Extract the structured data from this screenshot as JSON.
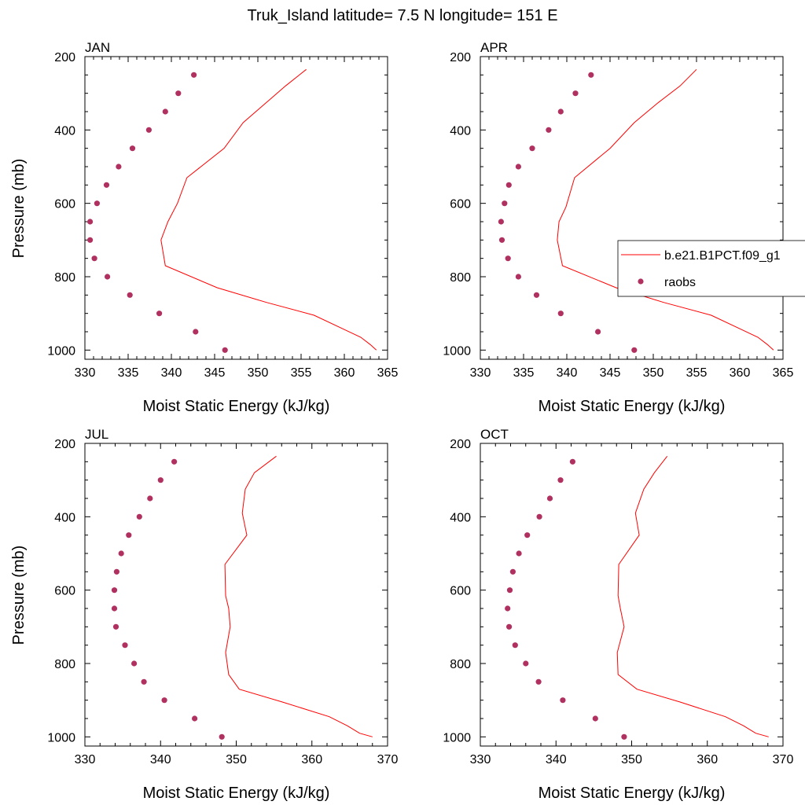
{
  "title": "Truk_Island  latitude= 7.5 N longitude= 151 E",
  "colors": {
    "model": "#ff0000",
    "obs": "#b03060",
    "axis": "#000000"
  },
  "legend": {
    "model_label": "b.e21.B1PCT.f09_g1",
    "obs_label": "raobs"
  },
  "chart_data": [
    {
      "type": "scatter",
      "title": "JAN",
      "xlabel": "Moist Static Energy (kJ/kg)",
      "ylabel": "Pressure (mb)",
      "xlim": [
        330,
        365
      ],
      "ylim": [
        1025,
        200
      ],
      "y_scale": "linear, inverted",
      "xticks": [
        330,
        335,
        340,
        345,
        350,
        355,
        360,
        365
      ],
      "yticks": [
        200,
        400,
        600,
        800,
        1000
      ],
      "series": [
        {
          "name": "b.e21.B1PCT.f09_g1",
          "mark": "line",
          "x": [
            363.7,
            363.0,
            361.9,
            360.1,
            356.5,
            351.0,
            345.3,
            339.3,
            338.8,
            339.6,
            340.7,
            341.8,
            346.1,
            348.3,
            351.0,
            353.2,
            355.6
          ],
          "y": [
            1000,
            985,
            965,
            945,
            905,
            870,
            830,
            770,
            700,
            650,
            600,
            530,
            450,
            380,
            325,
            280,
            235
          ]
        },
        {
          "name": "raobs",
          "mark": "marker",
          "x": [
            346.2,
            342.8,
            338.6,
            335.2,
            332.6,
            331.1,
            330.6,
            330.6,
            331.4,
            332.5,
            333.9,
            335.5,
            337.4,
            339.3,
            340.8,
            342.6
          ],
          "y": [
            1000,
            950,
            900,
            850,
            800,
            750,
            700,
            650,
            600,
            550,
            500,
            450,
            400,
            350,
            300,
            250
          ]
        }
      ]
    },
    {
      "type": "scatter",
      "title": "APR",
      "xlabel": "Moist Static Energy (kJ/kg)",
      "ylabel": "",
      "xlim": [
        330,
        365
      ],
      "ylim": [
        1025,
        200
      ],
      "y_scale": "linear, inverted",
      "xticks": [
        330,
        335,
        340,
        345,
        350,
        355,
        360,
        365
      ],
      "yticks": [
        200,
        400,
        600,
        800,
        1000
      ],
      "legend_position": "right",
      "series": [
        {
          "name": "b.e21.B1PCT.f09_g1",
          "mark": "line",
          "x": [
            363.9,
            363.2,
            362.1,
            360.3,
            356.7,
            351.2,
            345.7,
            339.5,
            338.9,
            339.1,
            339.9,
            340.9,
            345.0,
            347.8,
            350.6,
            353.1,
            355.0
          ],
          "y": [
            1000,
            985,
            965,
            945,
            905,
            870,
            830,
            770,
            700,
            650,
            610,
            530,
            450,
            380,
            325,
            280,
            235
          ]
        },
        {
          "name": "raobs",
          "mark": "marker",
          "x": [
            347.8,
            343.6,
            339.3,
            336.5,
            334.4,
            333.2,
            332.5,
            332.4,
            332.8,
            333.3,
            334.4,
            336.0,
            337.9,
            339.3,
            341.0,
            342.8
          ],
          "y": [
            1000,
            950,
            900,
            850,
            800,
            750,
            700,
            650,
            600,
            550,
            500,
            450,
            400,
            350,
            300,
            250
          ]
        }
      ]
    },
    {
      "type": "scatter",
      "title": "JUL",
      "xlabel": "Moist Static Energy (kJ/kg)",
      "ylabel": "Pressure (mb)",
      "xlim": [
        330,
        370
      ],
      "ylim": [
        1025,
        200
      ],
      "y_scale": "linear, inverted",
      "xticks": [
        330,
        340,
        350,
        360,
        370
      ],
      "yticks": [
        200,
        400,
        600,
        800,
        1000
      ],
      "series": [
        {
          "name": "b.e21.B1PCT.f09_g1",
          "mark": "line",
          "x": [
            368.0,
            366.3,
            364.7,
            362.3,
            356.1,
            350.4,
            349.0,
            348.6,
            349.2,
            349.0,
            348.6,
            348.5,
            351.4,
            350.8,
            351.2,
            352.4,
            355.3
          ],
          "y": [
            1000,
            990,
            970,
            945,
            905,
            870,
            830,
            770,
            700,
            650,
            615,
            530,
            450,
            390,
            325,
            280,
            235
          ]
        },
        {
          "name": "raobs",
          "mark": "marker",
          "x": [
            348.1,
            344.5,
            340.5,
            337.8,
            336.5,
            335.3,
            334.1,
            333.9,
            333.9,
            334.2,
            334.8,
            335.8,
            337.2,
            338.6,
            340.0,
            341.8
          ],
          "y": [
            1000,
            950,
            900,
            850,
            800,
            750,
            700,
            650,
            600,
            550,
            500,
            450,
            400,
            350,
            300,
            250
          ]
        }
      ]
    },
    {
      "type": "scatter",
      "title": "OCT",
      "xlabel": "Moist Static Energy (kJ/kg)",
      "ylabel": "",
      "xlim": [
        330,
        370
      ],
      "ylim": [
        1025,
        200
      ],
      "y_scale": "linear, inverted",
      "xticks": [
        330,
        340,
        350,
        360,
        370
      ],
      "yticks": [
        200,
        400,
        600,
        800,
        1000
      ],
      "series": [
        {
          "name": "b.e21.B1PCT.f09_g1",
          "mark": "line",
          "x": [
            368.1,
            366.4,
            364.8,
            362.4,
            356.4,
            350.7,
            348.2,
            348.1,
            349.0,
            348.5,
            348.2,
            348.3,
            351.0,
            350.5,
            351.6,
            353.0,
            354.7
          ],
          "y": [
            1000,
            990,
            970,
            945,
            905,
            870,
            830,
            770,
            700,
            650,
            615,
            530,
            450,
            390,
            325,
            280,
            235
          ]
        },
        {
          "name": "raobs",
          "mark": "marker",
          "x": [
            349.0,
            345.2,
            340.9,
            337.7,
            336.0,
            334.6,
            333.8,
            333.6,
            333.9,
            334.3,
            335.1,
            336.2,
            337.8,
            339.2,
            340.6,
            342.2
          ],
          "y": [
            1000,
            950,
            900,
            850,
            800,
            750,
            700,
            650,
            600,
            550,
            500,
            450,
            400,
            350,
            300,
            250
          ]
        }
      ]
    }
  ]
}
